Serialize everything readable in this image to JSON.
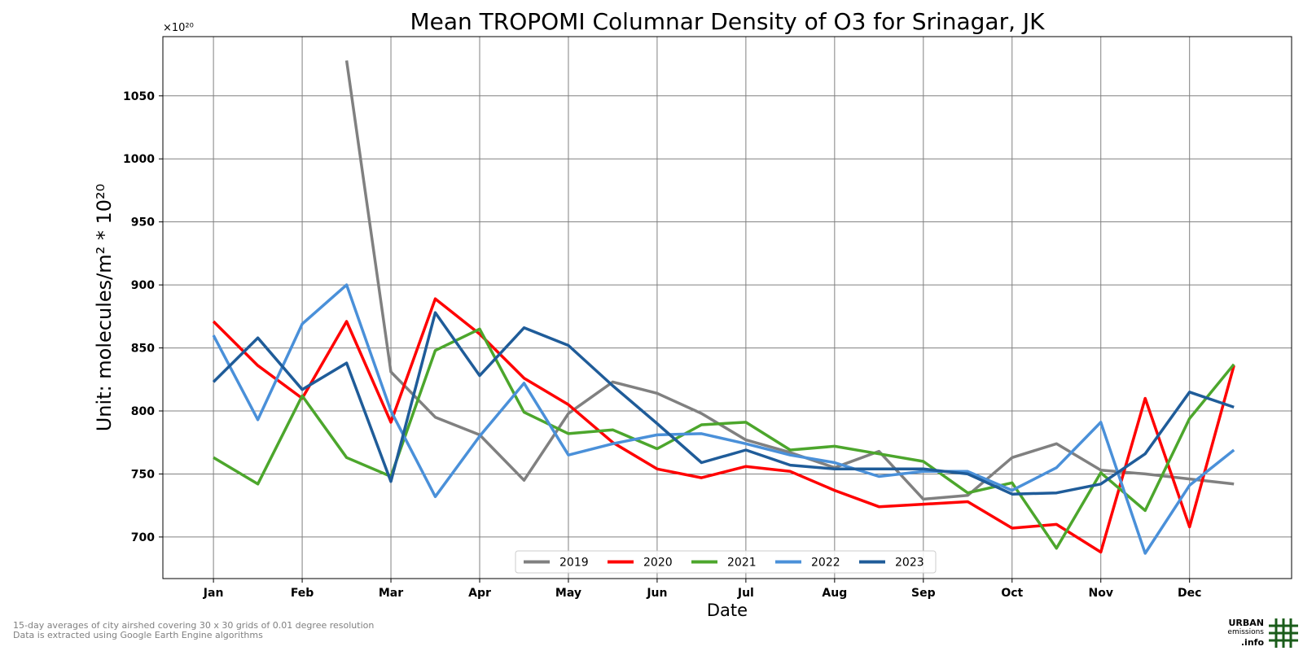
{
  "chart_data": {
    "type": "line",
    "title": "Mean TROPOMI Columnar Density of O3 for Srinagar, JK",
    "xlabel": "Date",
    "ylabel": "Unit: molecules/m² * 10²⁰",
    "y_multiplier": "×10²⁰",
    "x_tick_labels": [
      "Jan",
      "Feb",
      "Mar",
      "Apr",
      "May",
      "Jun",
      "Jul",
      "Aug",
      "Sep",
      "Oct",
      "Nov",
      "Dec"
    ],
    "y_ticks": [
      700,
      750,
      800,
      850,
      900,
      950,
      1000,
      1050
    ],
    "ylim": [
      667,
      1097
    ],
    "xlim": [
      0.43,
      13.15
    ],
    "x": [
      1,
      1.5,
      2,
      2.5,
      3,
      3.5,
      4,
      4.5,
      5,
      5.5,
      6,
      6.5,
      7,
      7.5,
      8,
      8.5,
      9,
      9.5,
      10,
      10.5,
      11,
      11.5,
      12,
      12.5
    ],
    "grid": true,
    "legend_position": "bottom-center",
    "series": [
      {
        "name": "2019",
        "color": "#808080",
        "values": [
          null,
          null,
          null,
          1078,
          831,
          795,
          781,
          745,
          798,
          823,
          814,
          798,
          777,
          767,
          755,
          768,
          730,
          733,
          763,
          774,
          753,
          750,
          746,
          742
        ]
      },
      {
        "name": "2020",
        "color": "#ff0000",
        "values": [
          871,
          836,
          810,
          871,
          791,
          889,
          861,
          826,
          805,
          775,
          754,
          747,
          756,
          752,
          737,
          724,
          726,
          728,
          707,
          710,
          688,
          810,
          708,
          836
        ]
      },
      {
        "name": "2021",
        "color": "#4ca62c",
        "values": [
          763,
          742,
          812,
          763,
          748,
          848,
          865,
          799,
          782,
          785,
          770,
          789,
          791,
          769,
          772,
          766,
          760,
          735,
          743,
          691,
          751,
          721,
          794,
          837
        ]
      },
      {
        "name": "2022",
        "color": "#4a90d9",
        "values": [
          860,
          793,
          869,
          900,
          800,
          732,
          780,
          822,
          765,
          774,
          781,
          782,
          774,
          765,
          759,
          748,
          752,
          752,
          737,
          755,
          791,
          687,
          741,
          769
        ]
      },
      {
        "name": "2023",
        "color": "#1f5c99",
        "values": [
          823,
          858,
          817,
          838,
          744,
          878,
          828,
          866,
          852,
          820,
          790,
          759,
          769,
          757,
          754,
          754,
          754,
          750,
          734,
          735,
          742,
          766,
          815,
          803
        ]
      }
    ]
  },
  "footnote": {
    "line1": "15-day averages of city airshed covering 30 x 30 grids of 0.01 degree resolution",
    "line2": "Data is extracted using Google Earth Engine algorithms"
  },
  "logo": {
    "line1": "URBAN",
    "line2": "emissions",
    "line3": ".info",
    "color": "#1a5c1a"
  }
}
